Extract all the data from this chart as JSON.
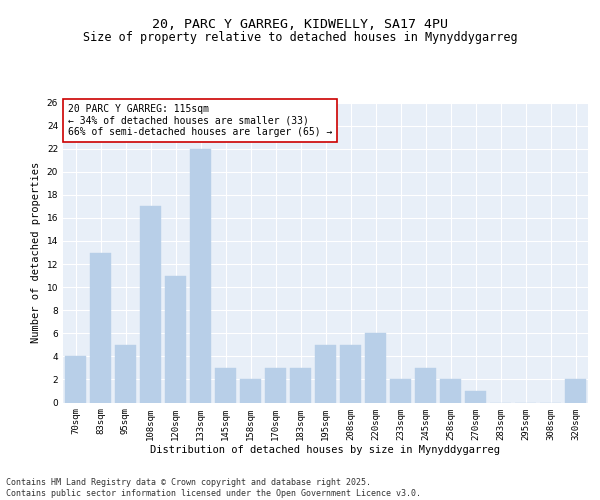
{
  "title1": "20, PARC Y GARREG, KIDWELLY, SA17 4PU",
  "title2": "Size of property relative to detached houses in Mynyddygarreg",
  "xlabel": "Distribution of detached houses by size in Mynyddygarreg",
  "ylabel": "Number of detached properties",
  "categories": [
    "70sqm",
    "83sqm",
    "95sqm",
    "108sqm",
    "120sqm",
    "133sqm",
    "145sqm",
    "158sqm",
    "170sqm",
    "183sqm",
    "195sqm",
    "208sqm",
    "220sqm",
    "233sqm",
    "245sqm",
    "258sqm",
    "270sqm",
    "283sqm",
    "295sqm",
    "308sqm",
    "320sqm"
  ],
  "values": [
    4,
    13,
    5,
    17,
    11,
    22,
    3,
    2,
    3,
    3,
    5,
    5,
    6,
    2,
    3,
    2,
    1,
    0,
    0,
    0,
    2
  ],
  "bar_color": "#b8cfe8",
  "bar_edge_color": "#b8cfe8",
  "annotation_box_text": "20 PARC Y GARREG: 115sqm\n← 34% of detached houses are smaller (33)\n66% of semi-detached houses are larger (65) →",
  "annotation_box_color": "#ffffff",
  "annotation_box_edge_color": "#cc0000",
  "ylim": [
    0,
    26
  ],
  "yticks": [
    0,
    2,
    4,
    6,
    8,
    10,
    12,
    14,
    16,
    18,
    20,
    22,
    24,
    26
  ],
  "background_color": "#e8eff8",
  "grid_color": "#ffffff",
  "footer_text": "Contains HM Land Registry data © Crown copyright and database right 2025.\nContains public sector information licensed under the Open Government Licence v3.0.",
  "title_fontsize": 9.5,
  "subtitle_fontsize": 8.5,
  "axis_label_fontsize": 7.5,
  "tick_fontsize": 6.5,
  "annotation_fontsize": 7,
  "footer_fontsize": 6
}
